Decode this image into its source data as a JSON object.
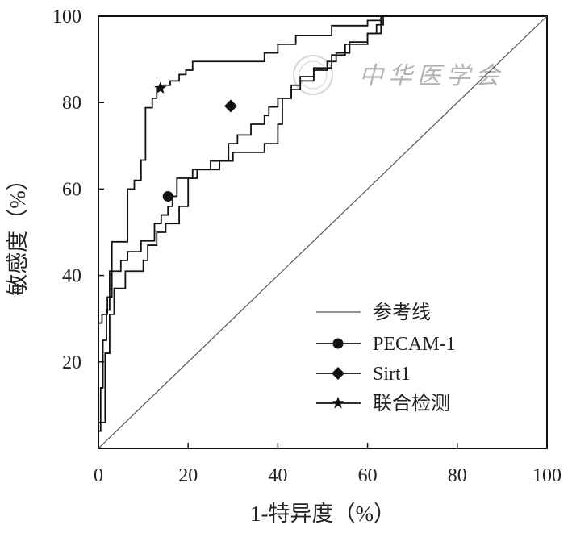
{
  "chart_data": {
    "type": "line",
    "title": "",
    "xlabel": "1-特异度（%）",
    "ylabel": "敏感度（%）",
    "xlim": [
      0,
      100
    ],
    "ylim": [
      0,
      100
    ],
    "x_ticks": [
      "0",
      "20",
      "40",
      "60",
      "80",
      "100"
    ],
    "y_ticks": [
      "20",
      "40",
      "60",
      "80",
      "100"
    ],
    "grid": false,
    "legend_position": "bottom-right",
    "watermark": "中华医学会",
    "series": [
      {
        "name": "参考线",
        "marker": "none",
        "color": "#555555",
        "x": [
          0,
          100
        ],
        "y": [
          0,
          100
        ]
      },
      {
        "name": "PECAM-1",
        "marker": "circle",
        "color": "#111111",
        "marker_point": [
          15.5,
          58.3
        ],
        "x": [
          0,
          0,
          0.5,
          0.5,
          1,
          1,
          1.8,
          1.8,
          2.5,
          2.5,
          5,
          5,
          6.5,
          6.5,
          9.5,
          9.5,
          12.5,
          12.5,
          14,
          14,
          15.5,
          15.5,
          16.5,
          16.5,
          17.5,
          17.5,
          22,
          22,
          27,
          27,
          29,
          29,
          31,
          31,
          34,
          34,
          37,
          37,
          38,
          38,
          40,
          40,
          43,
          43,
          45,
          45,
          48,
          48,
          51,
          51,
          53,
          53,
          56,
          56,
          60,
          60,
          62,
          62,
          63.5,
          63.5,
          69
        ],
        "y": [
          0,
          4,
          4,
          14,
          14,
          25,
          25,
          32,
          32,
          41,
          41,
          43.5,
          43.5,
          45.5,
          45.5,
          48,
          48,
          52,
          52,
          54,
          54,
          56,
          56,
          58.3,
          58.3,
          62.5,
          62.5,
          64.5,
          64.5,
          66.5,
          66.5,
          70.5,
          70.5,
          72.5,
          72.5,
          75,
          75,
          77,
          77,
          79,
          79,
          81,
          81,
          83,
          83,
          85,
          85,
          87.5,
          87.5,
          89.5,
          89.5,
          91.5,
          91.5,
          94,
          94,
          96,
          96,
          98,
          98,
          100,
          100
        ]
      },
      {
        "name": "Sirt1",
        "marker": "diamond",
        "color": "#111111",
        "marker_point": [
          29.5,
          79.2
        ],
        "x": [
          0,
          0,
          1.5,
          1.5,
          2.5,
          2.5,
          3.5,
          3.5,
          6,
          6,
          10,
          10,
          11,
          11,
          13,
          13,
          15,
          15,
          18,
          18,
          20,
          20,
          21,
          21,
          25,
          25,
          30,
          30,
          37,
          37,
          40,
          40,
          41,
          41,
          43,
          43,
          45,
          45,
          48,
          48,
          52,
          52,
          55,
          55,
          60,
          60,
          63,
          63,
          69
        ],
        "y": [
          0,
          6,
          6,
          22,
          22,
          31,
          31,
          37,
          37,
          41,
          41,
          43.5,
          43.5,
          47,
          47,
          50,
          50,
          52,
          52,
          56,
          56,
          62.5,
          62.5,
          64.5,
          64.5,
          66.5,
          66.5,
          68.5,
          68.5,
          70.5,
          70.5,
          75,
          75,
          81,
          81,
          84,
          84,
          86,
          86,
          88,
          88,
          91,
          91,
          93.5,
          93.5,
          96,
          96,
          100,
          100
        ]
      },
      {
        "name": "联合检测",
        "marker": "star",
        "color": "#111111",
        "marker_point": [
          13.8,
          83.3
        ],
        "x": [
          0,
          0,
          0.8,
          0.8,
          2,
          2,
          3,
          3,
          6.5,
          6.5,
          8,
          8,
          9.5,
          9.5,
          10.5,
          10.5,
          12,
          12,
          13,
          13,
          14,
          14,
          16,
          16,
          18,
          18,
          19.5,
          19.5,
          21,
          21,
          37,
          37,
          40,
          40,
          44,
          44,
          52,
          52,
          60,
          60,
          63,
          63,
          69
        ],
        "y": [
          0,
          29,
          29,
          31,
          31,
          35,
          35,
          47.8,
          47.8,
          60,
          60,
          62,
          62,
          66.7,
          66.7,
          78.8,
          78.8,
          81,
          81,
          83.3,
          83.3,
          84,
          84,
          85,
          85,
          86.5,
          86.5,
          87.5,
          87.5,
          89.5,
          89.5,
          91.5,
          91.5,
          93.5,
          93.5,
          95.5,
          95.5,
          97.8,
          97.8,
          99,
          99,
          100,
          100
        ]
      }
    ]
  }
}
